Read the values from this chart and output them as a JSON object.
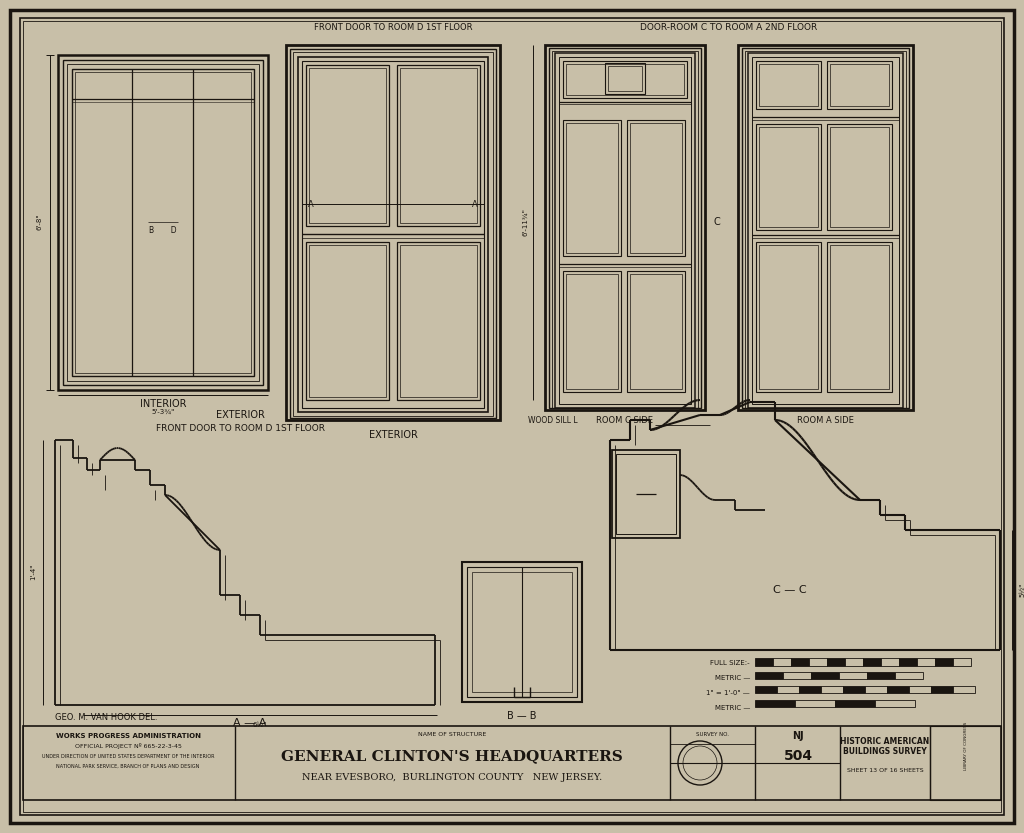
{
  "bg_color": "#c8bfa8",
  "paper_color": "#c8bfa8",
  "line_color": "#1a1510",
  "title_main": "GENERAL CLINTON'S HEADQUARTERS",
  "title_sub": "NEAR EVESBORO,  BURLINGTON COUNTY   NEW JERSEY.",
  "name_of_structure_label": "NAME OF STRUCTURE",
  "survey_no_label": "SURVEY NO.",
  "survey_nj": "NJ",
  "survey_504": "504",
  "historic_american_line1": "HISTORIC AMERICAN",
  "historic_american_line2": "BUILDINGS SURVEY",
  "sheet_info": "SHEET 13 OF 16 SHEETS",
  "works_line1": "WORKS PROGRESS ADMINISTRATION",
  "works_line2": "OFFICIAL PROJECT Nº 665-22-3-45",
  "works_line3": "UNDER DIRECTION OF UNITED STATES DEPARTMENT OF THE INTERIOR",
  "works_line4": "NATIONAL PARK SERVICE, BRANCH OF PLANS AND DESIGN",
  "label_interior": "INTERIOR",
  "label_exterior": "EXTERIOR",
  "label_front_door": "FRONT DOOR TO ROOM D 1ST FLOOR",
  "label_wood_sill": "WOOD SILL",
  "label_room_c_side": "ROOM C SIDE",
  "label_door_room_c": "DOOR-ROOM C TO ROOM A 2ND FLOOR",
  "label_room_a_side": "ROOM A SIDE",
  "label_aa": "A — A",
  "label_bd": "B — B",
  "label_cc": "C — C",
  "draftsman": "GEO. M. VAN HOOK DEL.",
  "full_size_label": "FULL SIZE:-",
  "metric_label1": "METRIC —",
  "scale_label": "1\" = 1'-0\" —",
  "metric_label2": "METRIC —",
  "fig_width": 10.24,
  "fig_height": 8.33
}
